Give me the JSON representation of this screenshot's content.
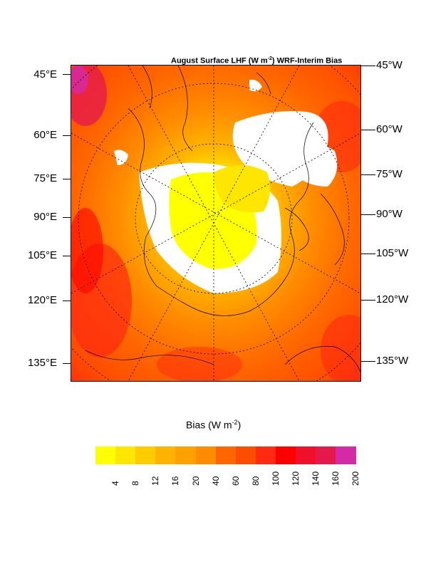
{
  "title": {
    "prefix": "August Surface LHF (W m",
    "sup": "-2",
    "suffix": ") WRF-Interim Bias"
  },
  "left_labels": [
    "45°E",
    "60°E",
    "75°E",
    "90°E",
    "105°E",
    "120°E",
    "135°E"
  ],
  "right_labels": [
    "45°W",
    "60°W",
    "75°W",
    "90°W",
    "105°W",
    "120°W",
    "135°W"
  ],
  "colorbar": {
    "title_prefix": "Bias (W m",
    "title_sup": "-2",
    "title_suffix": ")",
    "labels": [
      "4",
      "8",
      "12",
      "16",
      "20",
      "40",
      "60",
      "80",
      "100",
      "120",
      "140",
      "160",
      "200"
    ],
    "colors": [
      "#ffff00",
      "#ffe600",
      "#ffcc00",
      "#ffb300",
      "#ffa200",
      "#ff8c00",
      "#ff6600",
      "#ff4d00",
      "#ff2a10",
      "#ff0000",
      "#f0102a",
      "#e61a4a",
      "#d42aa6"
    ]
  },
  "map": {
    "land_color": "#ffffff",
    "ocean_low_color": "#ffff00"
  }
}
